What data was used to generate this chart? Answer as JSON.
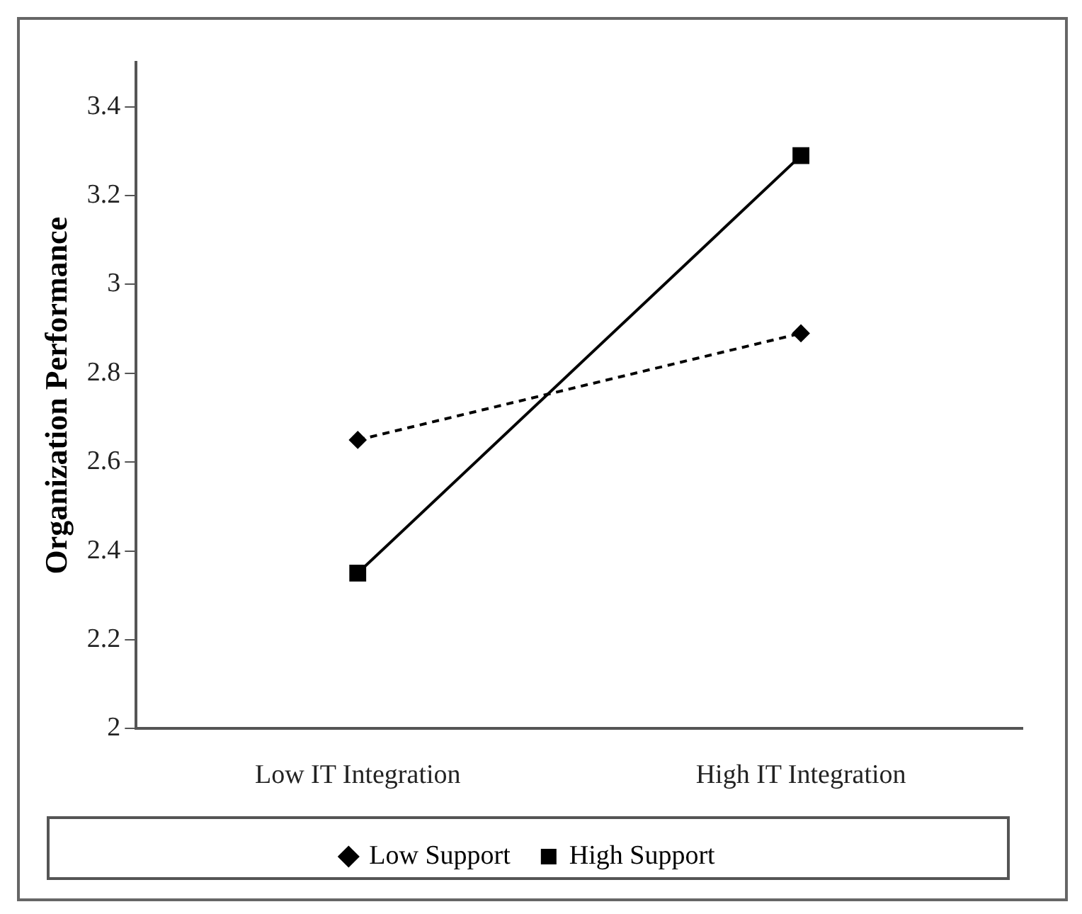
{
  "chart_data": {
    "type": "line",
    "ylabel": "Organization Performance",
    "categories": [
      "Low IT Integration",
      "High IT Integration"
    ],
    "series": [
      {
        "name": "Low Support",
        "color": "#000000",
        "values": [
          2.65,
          2.89
        ],
        "marker": "diamond",
        "line_style": "dashed"
      },
      {
        "name": "High Support",
        "color": "#000000",
        "values": [
          2.35,
          3.29
        ],
        "marker": "square",
        "line_style": "solid"
      }
    ],
    "ylim": [
      2,
      3.5
    ],
    "yticks": [
      2,
      2.2,
      2.4,
      2.6,
      2.8,
      3,
      3.2,
      3.4
    ],
    "grid": false,
    "legend": "bottom"
  }
}
